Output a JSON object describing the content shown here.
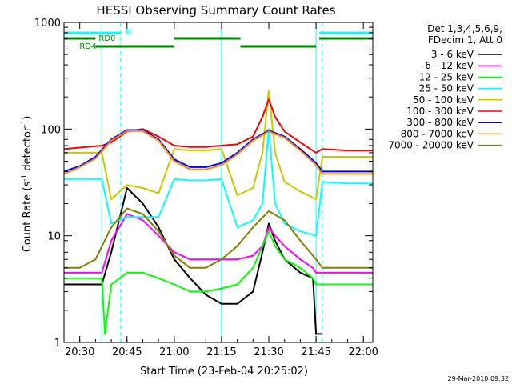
{
  "chart_data": {
    "type": "line",
    "title": "HESSI Observing Summary Count Rates",
    "xlabel": "Start Time (23-Feb-04 20:25:02)",
    "ylabel_main": "Count Rate (s",
    "ylabel_sup1": "-1",
    "ylabel_mid": " detector",
    "ylabel_sup2": "-1",
    "ylabel_end": ")",
    "y_log": true,
    "ylim": [
      1,
      1000
    ],
    "xlim_minutes": [
      0,
      98
    ],
    "x_ticks": [
      {
        "label": "20:30",
        "minute": 5
      },
      {
        "label": "20:45",
        "minute": 20
      },
      {
        "label": "21:00",
        "minute": 35
      },
      {
        "label": "21:15",
        "minute": 50
      },
      {
        "label": "21:30",
        "minute": 65
      },
      {
        "label": "21:45",
        "minute": 80
      },
      {
        "label": "22:00",
        "minute": 95
      }
    ],
    "y_ticks": [
      {
        "label": "1",
        "value": 1
      },
      {
        "label": "10",
        "value": 10
      },
      {
        "label": "100",
        "value": 100
      },
      {
        "label": "1000",
        "value": 1000
      }
    ],
    "legend_header": [
      "Det 1,3,4,5,6,9,",
      "FDecim 1, Att 0"
    ],
    "legend_placement": "right",
    "timestamp": "29-Mar-2010 09:32",
    "series": [
      {
        "name": "3 - 6 keV",
        "color": "#000000",
        "x": [
          0,
          12,
          15,
          20,
          25,
          30,
          35,
          40,
          45,
          50,
          55,
          60,
          63,
          65,
          67,
          70,
          75,
          79,
          80,
          82
        ],
        "y": [
          3.5,
          3.5,
          7,
          28,
          20,
          12,
          6,
          4,
          2.8,
          2.3,
          2.3,
          3,
          7,
          13,
          9,
          6,
          4.5,
          4,
          1.2,
          1.2
        ]
      },
      {
        "name": "6 - 12 keV",
        "color": "#ff00ff",
        "x": [
          0,
          12,
          15,
          20,
          25,
          30,
          35,
          40,
          45,
          50,
          55,
          60,
          63,
          65,
          67,
          70,
          75,
          79,
          80,
          82,
          90,
          98
        ],
        "y": [
          4.5,
          4.5,
          9,
          16,
          14,
          10,
          7,
          6,
          6,
          6,
          6,
          6.5,
          8,
          12,
          10,
          8,
          6,
          5,
          4.5,
          4.5,
          4.5,
          4.5
        ]
      },
      {
        "name": "12 - 25 keV",
        "color": "#00ff00",
        "x": [
          0,
          12,
          13,
          15,
          20,
          25,
          30,
          35,
          40,
          45,
          50,
          55,
          60,
          63,
          65,
          67,
          70,
          75,
          79,
          80,
          82,
          90,
          98
        ],
        "y": [
          4,
          4,
          1.2,
          3.5,
          4.5,
          4.5,
          4,
          3.5,
          3,
          3,
          3.2,
          3.5,
          5,
          8,
          11,
          8,
          6,
          5,
          4,
          3.5,
          3.5,
          3.5,
          3.5
        ]
      },
      {
        "name": "25 - 50 keV",
        "color": "#00ffff",
        "x": [
          0,
          12,
          15,
          20,
          25,
          30,
          35,
          40,
          45,
          50,
          55,
          60,
          63,
          65,
          67,
          70,
          75,
          80,
          82,
          90,
          98
        ],
        "y": [
          34,
          34,
          13,
          15,
          15,
          15,
          34,
          33,
          33,
          34,
          12,
          14,
          20,
          100,
          20,
          13,
          11,
          10,
          32,
          31,
          31
        ]
      },
      {
        "name": "50 - 100 keV",
        "color": "#c8c800",
        "x": [
          0,
          12,
          15,
          20,
          25,
          30,
          35,
          40,
          45,
          50,
          55,
          60,
          63,
          65,
          67,
          70,
          75,
          80,
          82,
          90,
          98
        ],
        "y": [
          60,
          60,
          22,
          30,
          28,
          25,
          65,
          63,
          63,
          65,
          24,
          28,
          60,
          230,
          60,
          32,
          26,
          22,
          55,
          55,
          55
        ]
      },
      {
        "name": "100 - 300 keV",
        "color": "#ff0000",
        "x": [
          0,
          12,
          15,
          20,
          25,
          30,
          35,
          40,
          45,
          50,
          55,
          60,
          63,
          65,
          67,
          70,
          75,
          80,
          82,
          90,
          98
        ],
        "y": [
          65,
          70,
          75,
          95,
          100,
          85,
          70,
          68,
          68,
          70,
          72,
          85,
          130,
          190,
          130,
          95,
          75,
          60,
          65,
          63,
          63
        ]
      },
      {
        "name": "300 - 800 keV",
        "color": "#0000ff",
        "x": [
          0,
          5,
          10,
          15,
          20,
          25,
          30,
          35,
          40,
          45,
          50,
          55,
          60,
          65,
          70,
          75,
          80,
          82,
          90,
          98
        ],
        "y": [
          40,
          45,
          55,
          80,
          98,
          98,
          80,
          52,
          44,
          44,
          48,
          60,
          80,
          97,
          85,
          65,
          48,
          40,
          40,
          40
        ]
      },
      {
        "name": "800 - 7000 keV",
        "color": "#ff8800",
        "x": [
          0,
          5,
          10,
          15,
          20,
          25,
          30,
          35,
          40,
          45,
          50,
          55,
          60,
          65,
          70,
          75,
          80,
          82,
          90,
          98
        ],
        "y": [
          38,
          44,
          53,
          78,
          96,
          96,
          78,
          50,
          42,
          42,
          46,
          58,
          78,
          95,
          83,
          63,
          46,
          38,
          38,
          38
        ]
      },
      {
        "name": "7000 - 20000 keV",
        "color": "#808000",
        "x": [
          0,
          5,
          10,
          15,
          20,
          25,
          30,
          35,
          40,
          45,
          50,
          55,
          60,
          65,
          70,
          75,
          80,
          82,
          90,
          98
        ],
        "y": [
          5,
          5,
          6,
          12,
          18,
          16,
          11,
          6.5,
          5,
          5,
          6,
          8,
          12,
          17,
          14,
          9,
          6,
          5,
          5,
          5
        ]
      }
    ],
    "state_bars": [
      {
        "label": "N",
        "color": "#00ffff",
        "segments": [
          [
            0,
            18
          ],
          [
            81,
            98
          ]
        ],
        "level": "top"
      },
      {
        "label": "RD0",
        "color": "#008000",
        "segments": [
          [
            0,
            10
          ],
          [
            35,
            56
          ],
          [
            81,
            98
          ]
        ],
        "level": "middle"
      },
      {
        "label": "RD4",
        "color": "#008000",
        "segments": [
          [
            10,
            35
          ],
          [
            56,
            80
          ]
        ],
        "level": "bottom"
      }
    ],
    "vertical_markers": [
      {
        "minute": 0,
        "style": "solid"
      },
      {
        "minute": 12,
        "style": "solid"
      },
      {
        "minute": 50,
        "style": "solid"
      },
      {
        "minute": 80,
        "style": "solid"
      },
      {
        "minute": 18,
        "style": "dashed"
      },
      {
        "minute": 82,
        "style": "dashed"
      },
      {
        "minute": 98,
        "style": "dashed"
      }
    ]
  }
}
